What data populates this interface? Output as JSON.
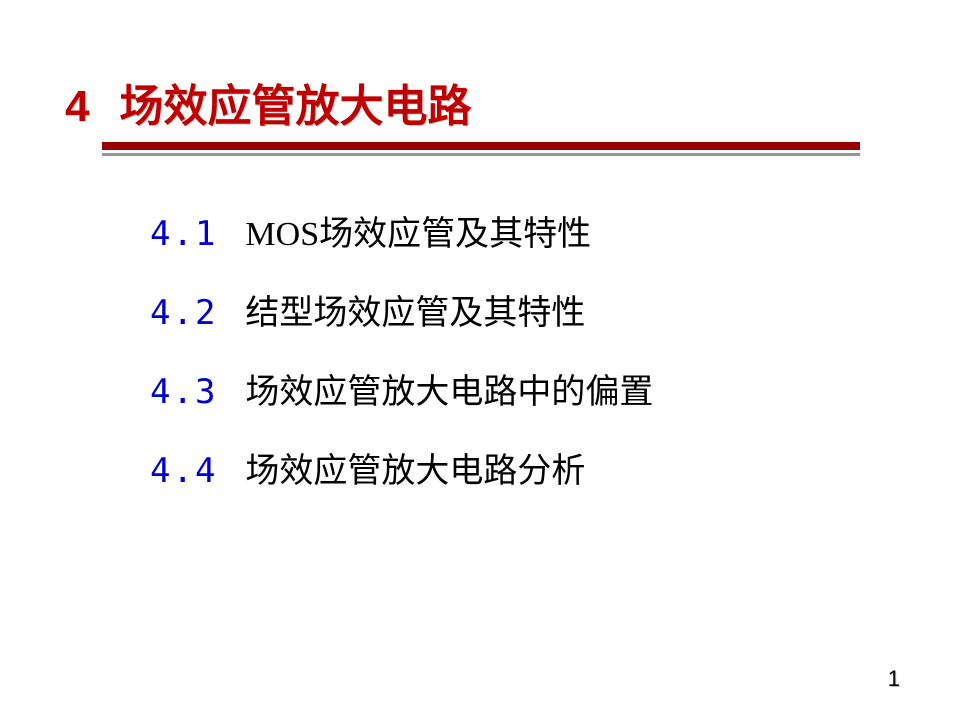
{
  "title": {
    "chapter_number": "4",
    "chapter_title": "场效应管放大电路",
    "title_color": "#c00000",
    "title_fontsize": 44
  },
  "divider": {
    "red_color": "#990000",
    "red_height": 8,
    "gray_color": "#969696",
    "gray_height": 3
  },
  "toc": {
    "number_color": "#0000cc",
    "text_color": "#000000",
    "fontsize": 34,
    "items": [
      {
        "number": "4.1",
        "text": "MOS场效应管及其特性"
      },
      {
        "number": "4.2",
        "text": "结型场效应管及其特性"
      },
      {
        "number": "4.3",
        "text": "场效应管放大电路中的偏置"
      },
      {
        "number": "4.4",
        "text": "场效应管放大电路分析"
      }
    ]
  },
  "page_number": "1",
  "background_color": "#ffffff"
}
